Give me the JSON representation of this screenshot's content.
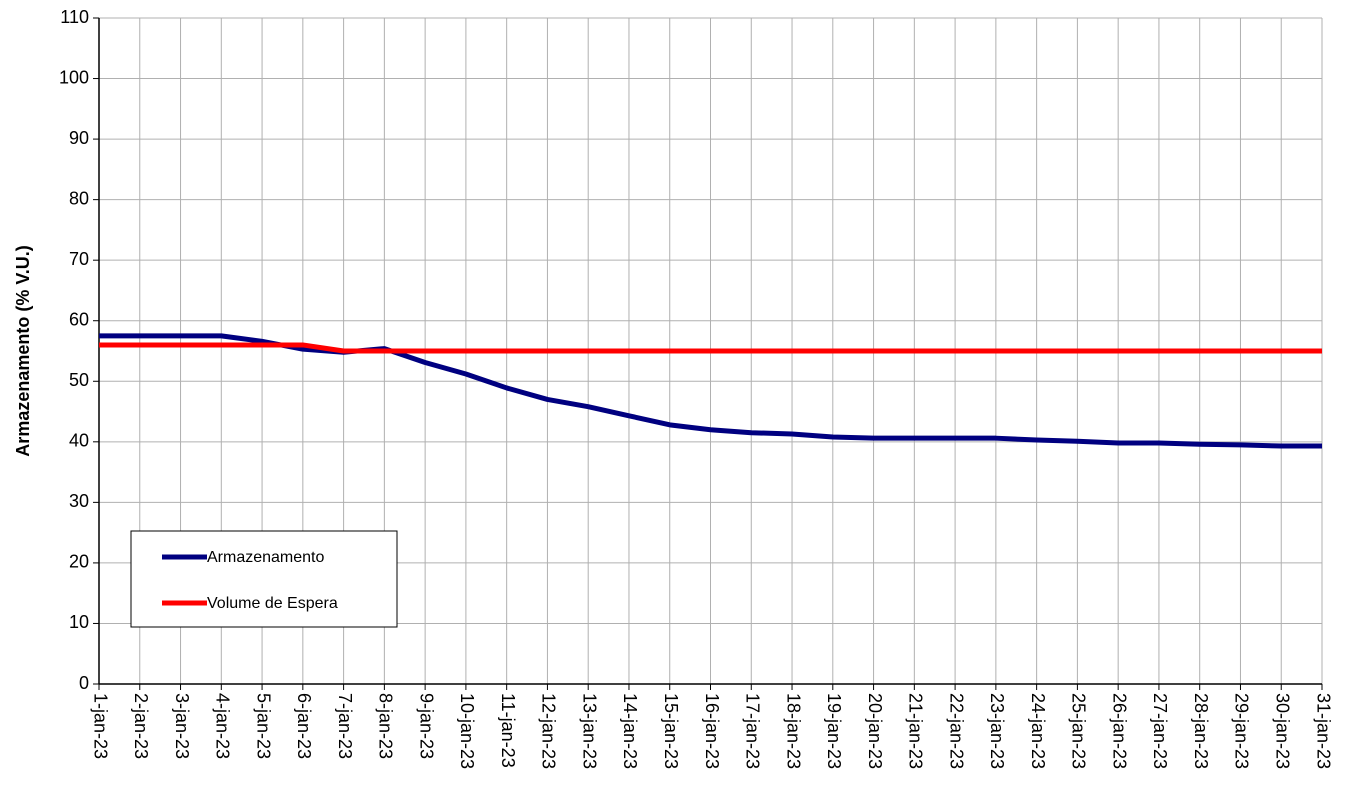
{
  "chart_data": {
    "type": "line",
    "y_label": "Armazenamento (% V.U.)",
    "categories": [
      "1-jan-23",
      "2-jan-23",
      "3-jan-23",
      "4-jan-23",
      "5-jan-23",
      "6-jan-23",
      "7-jan-23",
      "8-jan-23",
      "9-jan-23",
      "10-jan-23",
      "11-jan-23",
      "12-jan-23",
      "13-jan-23",
      "14-jan-23",
      "15-jan-23",
      "16-jan-23",
      "17-jan-23",
      "18-jan-23",
      "19-jan-23",
      "20-jan-23",
      "21-jan-23",
      "22-jan-23",
      "23-jan-23",
      "24-jan-23",
      "25-jan-23",
      "26-jan-23",
      "27-jan-23",
      "28-jan-23",
      "29-jan-23",
      "30-jan-23",
      "31-jan-23"
    ],
    "series": [
      {
        "name": "Armazenamento",
        "color": "#000080",
        "values": [
          57.5,
          57.5,
          57.5,
          57.5,
          56.6,
          55.3,
          54.8,
          55.4,
          53.1,
          51.2,
          48.9,
          47.0,
          45.8,
          44.3,
          42.8,
          42.0,
          41.5,
          41.3,
          40.8,
          40.6,
          40.6,
          40.6,
          40.6,
          40.3,
          40.1,
          39.8,
          39.8,
          39.6,
          39.5,
          39.3,
          39.3
        ]
      },
      {
        "name": "Volume de Espera",
        "color": "#ff0000",
        "values": [
          56,
          56,
          56,
          56,
          56,
          56,
          55,
          55,
          55,
          55,
          55,
          55,
          55,
          55,
          55,
          55,
          55,
          55,
          55,
          55,
          55,
          55,
          55,
          55,
          55,
          55,
          55,
          55,
          55,
          55,
          55
        ]
      }
    ],
    "ylim": [
      0,
      110
    ],
    "yticks": [
      0,
      10,
      20,
      30,
      40,
      50,
      60,
      70,
      80,
      90,
      100,
      110
    ],
    "grid": true,
    "legend": "lower left"
  }
}
